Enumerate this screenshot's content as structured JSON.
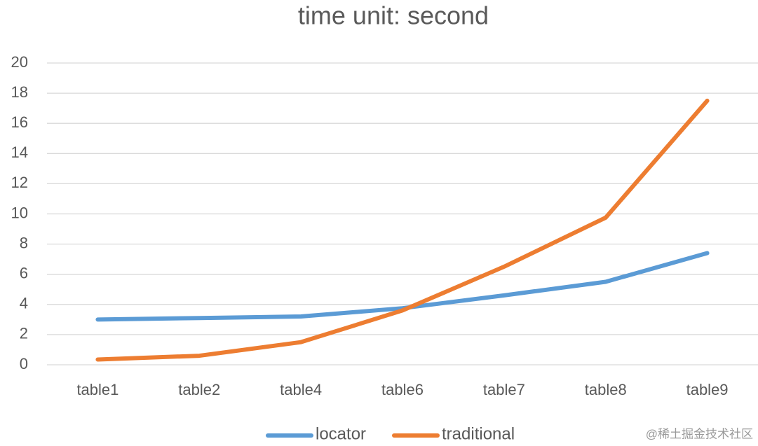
{
  "chart_data": {
    "type": "line",
    "title": "time unit: second",
    "categories": [
      "table1",
      "table2",
      "table4",
      "table6",
      "table7",
      "table8",
      "table9"
    ],
    "series": [
      {
        "name": "locator",
        "color": "#5b9bd5",
        "values": [
          3.0,
          3.1,
          3.2,
          3.75,
          4.6,
          5.5,
          7.4
        ]
      },
      {
        "name": "traditional",
        "color": "#ed7d31",
        "values": [
          0.35,
          0.6,
          1.5,
          3.6,
          6.5,
          9.75,
          17.5
        ]
      }
    ],
    "ylim": [
      0,
      20
    ],
    "yticks": [
      0,
      2,
      4,
      6,
      8,
      10,
      12,
      14,
      16,
      18,
      20
    ],
    "grid": true,
    "legend": "bottom",
    "watermark": "@稀土掘金技术社区"
  }
}
